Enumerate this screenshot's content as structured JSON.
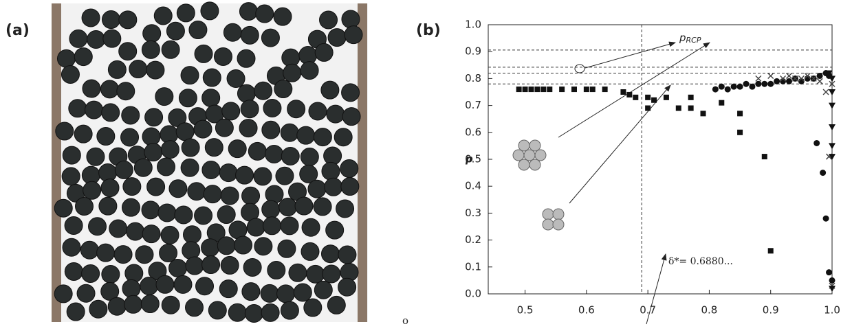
{
  "panel_labels": [
    "(a)",
    "(b)"
  ],
  "stray_text": "o",
  "chart_data": {
    "type": "scatter",
    "y_label": "p",
    "xlim": [
      0.44,
      1.0
    ],
    "ylim": [
      0,
      1.0
    ],
    "xticks": [
      0.5,
      0.6,
      0.7,
      0.8,
      0.9,
      {
        "value": 1,
        "label": "1.0"
      }
    ],
    "yticks": [
      {
        "value": 0,
        "label": "0.0"
      },
      0.1,
      0.2,
      0.3,
      0.4,
      0.5,
      0.6,
      0.7,
      0.8,
      0.9,
      {
        "value": 1,
        "label": "1.0"
      }
    ],
    "vlines": [
      0.69
    ],
    "hlines": [
      0.906,
      0.842,
      0.82,
      0.78
    ],
    "annotations": [
      {
        "text": "p",
        "sub": "RCP"
      },
      {
        "text": "δ*= 0.6880..."
      }
    ],
    "series": [
      {
        "marker": "square",
        "color": "#111111",
        "x": [
          0.49,
          0.5,
          0.51,
          0.52,
          0.53,
          0.54,
          0.56,
          0.58,
          0.6,
          0.61,
          0.63,
          0.66,
          0.67,
          0.68,
          0.7,
          0.7,
          0.71,
          0.73,
          0.75,
          0.77,
          0.77,
          0.79,
          0.82,
          0.85,
          0.85,
          0.89,
          0.9
        ],
        "values": [
          0.76,
          0.76,
          0.76,
          0.76,
          0.76,
          0.76,
          0.76,
          0.76,
          0.76,
          0.76,
          0.76,
          0.75,
          0.74,
          0.73,
          0.73,
          0.69,
          0.72,
          0.73,
          0.69,
          0.73,
          0.69,
          0.67,
          0.71,
          0.67,
          0.6,
          0.51,
          0.16
        ]
      },
      {
        "marker": "circle",
        "color": "#111111",
        "x": [
          0.81,
          0.82,
          0.83,
          0.84,
          0.85,
          0.86,
          0.87,
          0.88,
          0.89,
          0.9,
          0.91,
          0.92,
          0.93,
          0.94,
          0.95,
          0.96,
          0.97,
          0.98,
          0.99,
          0.995,
          0.975,
          0.985,
          0.99,
          0.995,
          1.0
        ],
        "values": [
          0.76,
          0.77,
          0.76,
          0.77,
          0.77,
          0.78,
          0.77,
          0.78,
          0.78,
          0.78,
          0.79,
          0.79,
          0.79,
          0.8,
          0.79,
          0.8,
          0.8,
          0.81,
          0.82,
          0.81,
          0.56,
          0.45,
          0.28,
          0.08,
          0.05
        ]
      },
      {
        "marker": "cross",
        "color": "#444444",
        "x": [
          0.88,
          0.9,
          0.92,
          0.93,
          0.94,
          0.95,
          0.96,
          0.97,
          0.98,
          0.99,
          1.0,
          0.995,
          1.0
        ],
        "values": [
          0.8,
          0.81,
          0.8,
          0.81,
          0.8,
          0.8,
          0.81,
          0.8,
          0.79,
          0.75,
          0.78,
          0.51,
          0.03
        ]
      },
      {
        "marker": "triangle",
        "color": "#111111",
        "x": [
          0.995,
          1.0,
          1.0,
          1.0,
          1.0,
          1.0,
          1.0,
          1.0
        ],
        "values": [
          0.82,
          0.8,
          0.75,
          0.7,
          0.62,
          0.55,
          0.51,
          0.02
        ]
      }
    ]
  }
}
